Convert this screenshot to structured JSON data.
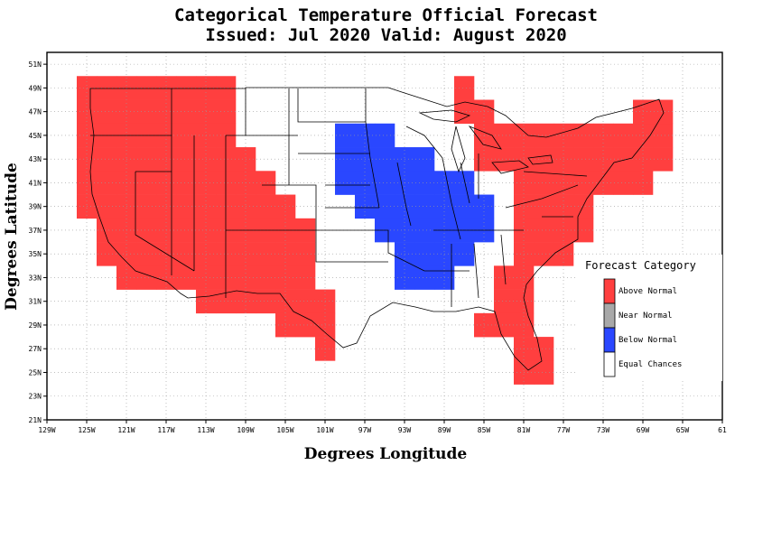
{
  "title": {
    "line1": "Categorical Temperature Official Forecast",
    "line2": "Issued: Jul 2020 Valid: August 2020"
  },
  "axes": {
    "xlabel": "Degrees Longitude",
    "ylabel": "Degrees Latitude",
    "lon_range": [
      -129,
      -61
    ],
    "lat_range": [
      21,
      52
    ],
    "x_ticks": [
      "129W",
      "125W",
      "121W",
      "117W",
      "113W",
      "109W",
      "105W",
      "101W",
      "97W",
      "93W",
      "89W",
      "85W",
      "81W",
      "77W",
      "73W",
      "69W",
      "65W",
      "61"
    ],
    "y_ticks": [
      "21N",
      "23N",
      "25N",
      "27N",
      "29N",
      "31N",
      "33N",
      "35N",
      "37N",
      "39N",
      "41N",
      "43N",
      "45N",
      "47N",
      "49N",
      "51N"
    ],
    "grid": true
  },
  "legend": {
    "title": "Forecast Category",
    "placement": "right",
    "items": [
      {
        "label": "Above Normal",
        "color": "#ff3f3f"
      },
      {
        "label": "Near Normal",
        "color": "#a8a8a8"
      },
      {
        "label": "Below Normal",
        "color": "#2a47ff"
      },
      {
        "label": "Equal Chances",
        "color": "#ffffff"
      }
    ]
  },
  "colors": {
    "above": "#ff3f3f",
    "below": "#2a47ff",
    "near": "#a8a8a8",
    "equal": "#ffffff"
  },
  "chart_data": {
    "type": "heatmap",
    "cell_size_deg": 2,
    "categories": [
      "Above Normal",
      "Near Normal",
      "Below Normal",
      "Equal Chances"
    ],
    "above_normal_cells": [
      [
        -125,
        49
      ],
      [
        -123,
        49
      ],
      [
        -121,
        49
      ],
      [
        -119,
        49
      ],
      [
        -117,
        49
      ],
      [
        -115,
        49
      ],
      [
        -113,
        49
      ],
      [
        -111,
        49
      ],
      [
        -125,
        47
      ],
      [
        -123,
        47
      ],
      [
        -121,
        47
      ],
      [
        -119,
        47
      ],
      [
        -117,
        47
      ],
      [
        -115,
        47
      ],
      [
        -113,
        47
      ],
      [
        -111,
        47
      ],
      [
        -125,
        45
      ],
      [
        -123,
        45
      ],
      [
        -121,
        45
      ],
      [
        -119,
        45
      ],
      [
        -117,
        45
      ],
      [
        -115,
        45
      ],
      [
        -113,
        45
      ],
      [
        -111,
        45
      ],
      [
        -125,
        43
      ],
      [
        -123,
        43
      ],
      [
        -121,
        43
      ],
      [
        -119,
        43
      ],
      [
        -117,
        43
      ],
      [
        -115,
        43
      ],
      [
        -113,
        43
      ],
      [
        -111,
        43
      ],
      [
        -109,
        43
      ],
      [
        -125,
        41
      ],
      [
        -123,
        41
      ],
      [
        -121,
        41
      ],
      [
        -119,
        41
      ],
      [
        -117,
        41
      ],
      [
        -115,
        41
      ],
      [
        -113,
        41
      ],
      [
        -111,
        41
      ],
      [
        -109,
        41
      ],
      [
        -107,
        41
      ],
      [
        -125,
        39
      ],
      [
        -123,
        39
      ],
      [
        -121,
        39
      ],
      [
        -119,
        39
      ],
      [
        -117,
        39
      ],
      [
        -115,
        39
      ],
      [
        -113,
        39
      ],
      [
        -111,
        39
      ],
      [
        -109,
        39
      ],
      [
        -107,
        39
      ],
      [
        -105,
        39
      ],
      [
        -123,
        37
      ],
      [
        -121,
        37
      ],
      [
        -119,
        37
      ],
      [
        -117,
        37
      ],
      [
        -115,
        37
      ],
      [
        -113,
        37
      ],
      [
        -111,
        37
      ],
      [
        -109,
        37
      ],
      [
        -107,
        37
      ],
      [
        -105,
        37
      ],
      [
        -103,
        37
      ],
      [
        -123,
        35
      ],
      [
        -121,
        35
      ],
      [
        -119,
        35
      ],
      [
        -117,
        35
      ],
      [
        -115,
        35
      ],
      [
        -113,
        35
      ],
      [
        -111,
        35
      ],
      [
        -109,
        35
      ],
      [
        -107,
        35
      ],
      [
        -105,
        35
      ],
      [
        -103,
        35
      ],
      [
        -121,
        33
      ],
      [
        -119,
        33
      ],
      [
        -117,
        33
      ],
      [
        -115,
        33
      ],
      [
        -113,
        33
      ],
      [
        -111,
        33
      ],
      [
        -109,
        33
      ],
      [
        -107,
        33
      ],
      [
        -105,
        33
      ],
      [
        -103,
        33
      ],
      [
        -113,
        31
      ],
      [
        -111,
        31
      ],
      [
        -109,
        31
      ],
      [
        -107,
        31
      ],
      [
        -105,
        31
      ],
      [
        -103,
        31
      ],
      [
        -101,
        31
      ],
      [
        -105,
        29
      ],
      [
        -103,
        29
      ],
      [
        -101,
        29
      ],
      [
        -101,
        27
      ],
      [
        -87,
        49
      ],
      [
        -87,
        47
      ],
      [
        -85,
        47
      ],
      [
        -85,
        45
      ],
      [
        -83,
        45
      ],
      [
        -81,
        45
      ],
      [
        -85,
        43
      ],
      [
        -83,
        43
      ],
      [
        -81,
        43
      ],
      [
        -79,
        45
      ],
      [
        -77,
        45
      ],
      [
        -75,
        45
      ],
      [
        -73,
        45
      ],
      [
        -71,
        45
      ],
      [
        -69,
        45
      ],
      [
        -67,
        45
      ],
      [
        -79,
        43
      ],
      [
        -77,
        43
      ],
      [
        -75,
        43
      ],
      [
        -73,
        43
      ],
      [
        -71,
        43
      ],
      [
        -69,
        43
      ],
      [
        -67,
        43
      ],
      [
        -69,
        47
      ],
      [
        -67,
        47
      ],
      [
        -81,
        41
      ],
      [
        -79,
        41
      ],
      [
        -77,
        41
      ],
      [
        -75,
        41
      ],
      [
        -73,
        41
      ],
      [
        -71,
        41
      ],
      [
        -69,
        41
      ],
      [
        -81,
        39
      ],
      [
        -79,
        39
      ],
      [
        -77,
        39
      ],
      [
        -75,
        39
      ],
      [
        -81,
        37
      ],
      [
        -79,
        37
      ],
      [
        -77,
        37
      ],
      [
        -75,
        37
      ],
      [
        -81,
        35
      ],
      [
        -79,
        35
      ],
      [
        -77,
        35
      ],
      [
        -83,
        33
      ],
      [
        -81,
        33
      ],
      [
        -83,
        31
      ],
      [
        -81,
        31
      ],
      [
        -85,
        29
      ],
      [
        -83,
        29
      ],
      [
        -81,
        29
      ],
      [
        -81,
        27
      ],
      [
        -79,
        27
      ],
      [
        -81,
        25
      ],
      [
        -79,
        25
      ]
    ],
    "below_normal_cells": [
      [
        -99,
        45
      ],
      [
        -97,
        45
      ],
      [
        -95,
        45
      ],
      [
        -99,
        43
      ],
      [
        -97,
        43
      ],
      [
        -95,
        43
      ],
      [
        -93,
        43
      ],
      [
        -91,
        43
      ],
      [
        -99,
        41
      ],
      [
        -97,
        41
      ],
      [
        -95,
        41
      ],
      [
        -93,
        41
      ],
      [
        -91,
        41
      ],
      [
        -89,
        41
      ],
      [
        -87,
        41
      ],
      [
        -97,
        39
      ],
      [
        -95,
        39
      ],
      [
        -93,
        39
      ],
      [
        -91,
        39
      ],
      [
        -89,
        39
      ],
      [
        -87,
        39
      ],
      [
        -85,
        39
      ],
      [
        -95,
        37
      ],
      [
        -93,
        37
      ],
      [
        -91,
        37
      ],
      [
        -89,
        37
      ],
      [
        -87,
        37
      ],
      [
        -85,
        37
      ],
      [
        -93,
        35
      ],
      [
        -91,
        35
      ],
      [
        -89,
        35
      ],
      [
        -87,
        35
      ],
      [
        -93,
        33
      ],
      [
        -91,
        33
      ],
      [
        -89,
        33
      ]
    ]
  }
}
